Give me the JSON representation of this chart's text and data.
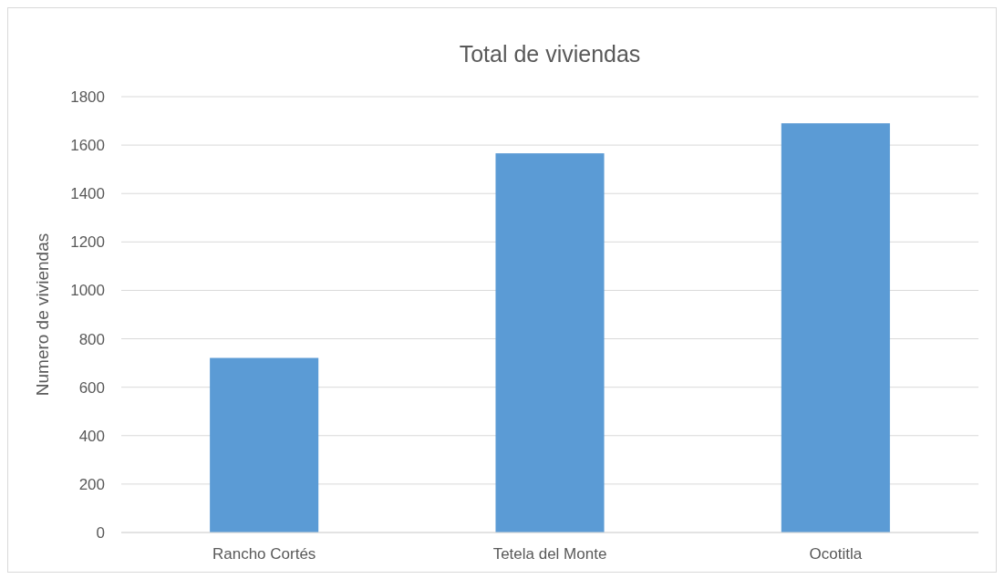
{
  "chart_data": {
    "type": "bar",
    "title": "Total de viviendas",
    "ylabel": "Numero de viviendas",
    "categories": [
      "Rancho Cortés",
      "Tetela del Monte",
      "Ocotitla"
    ],
    "values": [
      721,
      1566,
      1690
    ],
    "color": "#5b9bd5",
    "ylim": [
      0,
      1800
    ],
    "yticks": [
      0,
      200,
      400,
      600,
      800,
      1000,
      1200,
      1400,
      1600,
      1800
    ],
    "grid": "y"
  }
}
